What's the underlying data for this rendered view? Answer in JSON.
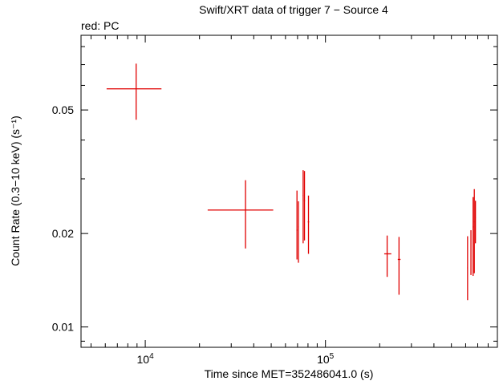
{
  "chart_data": {
    "type": "scatter",
    "title": "Swift/XRT data of trigger 7 − Source 4",
    "subtitle": "red: PC",
    "xlabel": "Time since MET=352486041.0 (s)",
    "ylabel": "Count Rate (0.3−10 keV) (s⁻¹)",
    "xscale": "log",
    "yscale": "log",
    "xlim": [
      4400,
      900000
    ],
    "ylim": [
      0.0086,
      0.087
    ],
    "grid": false,
    "legend": "none",
    "x_ticks": [
      {
        "value": 10000,
        "base": "10",
        "exp": "4"
      },
      {
        "value": 100000,
        "base": "10",
        "exp": "5"
      }
    ],
    "y_ticks": [
      {
        "value": 0.01,
        "label": "0.01"
      },
      {
        "value": 0.02,
        "label": "0.02"
      },
      {
        "value": 0.05,
        "label": "0.05"
      }
    ],
    "series": [
      {
        "mode": "PC",
        "color": "#e00000",
        "points": [
          {
            "x": 8900,
            "xmin": 6100,
            "xmax": 12300,
            "y": 0.0585,
            "ymin": 0.0465,
            "ymax": 0.0705
          },
          {
            "x": 36000,
            "xmin": 22200,
            "xmax": 51300,
            "y": 0.0238,
            "ymin": 0.0179,
            "ymax": 0.0297
          },
          {
            "x": 69500,
            "xmin": 69000,
            "xmax": 70000,
            "y": 0.0205,
            "ymin": 0.0165,
            "ymax": 0.0275
          },
          {
            "x": 70800,
            "xmin": 70400,
            "xmax": 71200,
            "y": 0.021,
            "ymin": 0.0161,
            "ymax": 0.0254
          },
          {
            "x": 75200,
            "xmin": 74800,
            "xmax": 75700,
            "y": 0.0265,
            "ymin": 0.0186,
            "ymax": 0.032
          },
          {
            "x": 76500,
            "xmin": 76000,
            "xmax": 77000,
            "y": 0.0255,
            "ymin": 0.019,
            "ymax": 0.0318
          },
          {
            "x": 80500,
            "xmin": 79800,
            "xmax": 81200,
            "y": 0.0218,
            "ymin": 0.0172,
            "ymax": 0.0265
          },
          {
            "x": 220000,
            "xmin": 212000,
            "xmax": 232000,
            "y": 0.0172,
            "ymin": 0.0145,
            "ymax": 0.0197
          },
          {
            "x": 256000,
            "xmin": 252000,
            "xmax": 261000,
            "y": 0.0165,
            "ymin": 0.0127,
            "ymax": 0.0195
          },
          {
            "x": 615000,
            "xmin": 612000,
            "xmax": 618000,
            "y": 0.0155,
            "ymin": 0.0122,
            "ymax": 0.0196
          },
          {
            "x": 642000,
            "xmin": 639000,
            "xmax": 645000,
            "y": 0.0172,
            "ymin": 0.0147,
            "ymax": 0.0205
          },
          {
            "x": 660000,
            "xmin": 656000,
            "xmax": 663000,
            "y": 0.021,
            "ymin": 0.0146,
            "ymax": 0.0262
          },
          {
            "x": 670000,
            "xmin": 667000,
            "xmax": 673000,
            "y": 0.0218,
            "ymin": 0.0149,
            "ymax": 0.0278
          },
          {
            "x": 680000,
            "xmin": 677000,
            "xmax": 683000,
            "y": 0.0225,
            "ymin": 0.0186,
            "ymax": 0.0255
          }
        ]
      }
    ]
  }
}
